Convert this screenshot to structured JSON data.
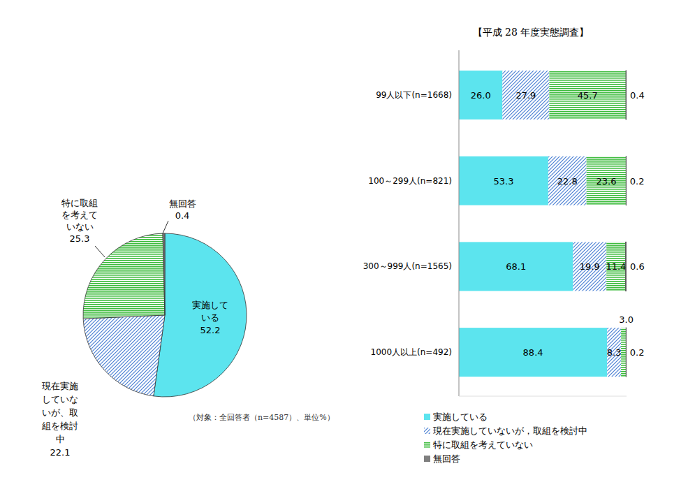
{
  "chart_data": [
    {
      "type": "pie",
      "categories": [
        "実施している",
        "現在実施していないが、取組を検討中",
        "特に取組を考えていない",
        "無回答"
      ],
      "values": [
        52.2,
        22.1,
        25.3,
        0.4
      ],
      "colors": [
        "#5ce4ee",
        "#4a7fd4",
        "#3dbb3d",
        "#7f7f7f"
      ],
      "data_labels": true,
      "annotations": [
        "（対象：全回答者（n=4587）、単位%）"
      ]
    },
    {
      "type": "bar",
      "title": "【平成 28 年度実態調査】",
      "orientation": "horizontal",
      "stacked": true,
      "categories": [
        "99人以下(n=1668)",
        "100～299人(n=821)",
        "300～999人(n=1565)",
        "1000人以上(n=492)"
      ],
      "series": [
        {
          "name": "実施している",
          "color": "#5ce4ee",
          "values": [
            26.0,
            53.3,
            68.1,
            88.4
          ],
          "value_labels": [
            "26.0",
            "53.3",
            "68.1",
            "88.4"
          ]
        },
        {
          "name": "現在実施していないが，取組を検討中",
          "color": "#4a7fd4",
          "values": [
            27.9,
            22.8,
            19.9,
            8.3
          ],
          "value_labels": [
            "27.9",
            "22.8",
            "19.9",
            "8.3"
          ]
        },
        {
          "name": "特に取組を考えていない",
          "color": "#3dbb3d",
          "values": [
            45.7,
            23.6,
            11.4,
            3.0
          ],
          "value_labels": [
            "45.7",
            "23.6",
            "11.4",
            "3.0"
          ]
        },
        {
          "name": "無回答",
          "color": "#7f7f7f",
          "values": [
            0.4,
            0.2,
            0.6,
            0.2
          ],
          "value_labels": [
            "0.4",
            "0.2",
            "0.6",
            "0.2"
          ]
        }
      ],
      "xlim": [
        0,
        100
      ],
      "tick_labels": "y",
      "data_labels": true,
      "legend": "bottom"
    }
  ]
}
